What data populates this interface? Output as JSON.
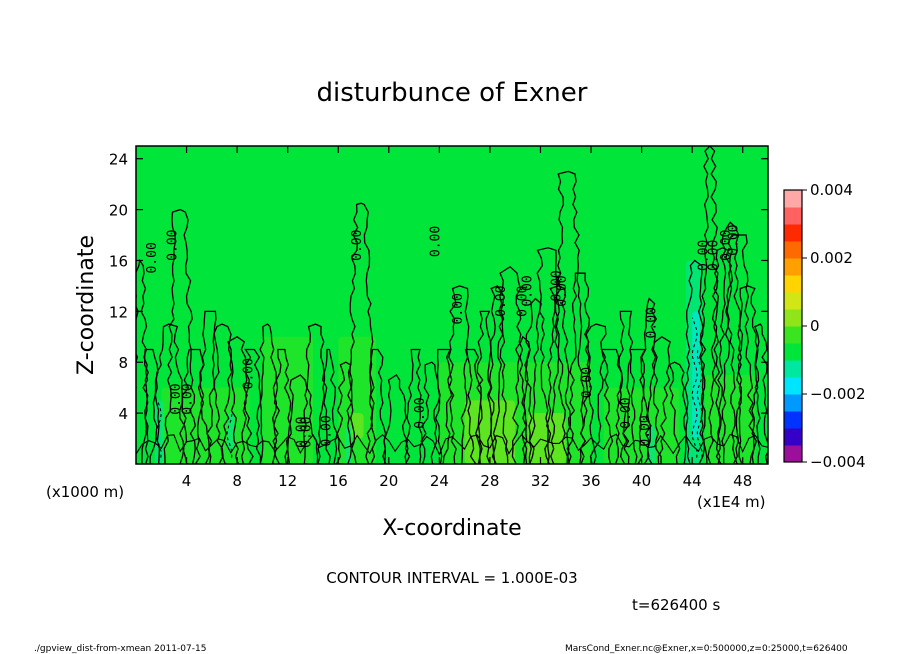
{
  "chart_data": {
    "type": "heatmap",
    "title": "disturbunce of Exner",
    "xlabel": "X-coordinate",
    "ylabel": "Z-coordinate",
    "x_unit_note": "(x1000 m)",
    "x_scale_note": "(x1E4 m)",
    "xlim": [
      0,
      50
    ],
    "ylim": [
      0,
      25
    ],
    "x_ticks": [
      4,
      8,
      12,
      16,
      20,
      24,
      28,
      32,
      36,
      40,
      44,
      48
    ],
    "y_ticks": [
      4,
      8,
      12,
      16,
      20,
      24
    ],
    "x_tick_labels": [
      "4",
      "8",
      "12",
      "16",
      "20",
      "24",
      "28",
      "32",
      "36",
      "40",
      "44",
      "48"
    ],
    "y_tick_labels": [
      "4",
      "8",
      "12",
      "16",
      "20",
      "24"
    ],
    "colorbar": {
      "range": [
        -0.004,
        0.004
      ],
      "tick_labels": [
        "0.004",
        "0.002",
        "0",
        "−0.002",
        "−0.004"
      ],
      "colors": [
        "#9b0f9b",
        "#3500c8",
        "#0033ff",
        "#0099ff",
        "#00e5ff",
        "#00e8a0",
        "#00e53a",
        "#38e51e",
        "#8fe51a",
        "#d2e515",
        "#ffd400",
        "#ffa000",
        "#ff6a00",
        "#ff2a00",
        "#ff6060",
        "#ffa8a8"
      ]
    },
    "contour_interval_label": "CONTOUR INTERVAL = 1.000E-03",
    "contour_labels": [
      "0.00",
      "0.00",
      "0.00",
      "0.00",
      "0.00",
      "0.00",
      "0.00",
      "0.00",
      "0.00",
      "0.00",
      "0.00",
      "0.00",
      "0.00",
      "0.00",
      "0.00",
      "0.00",
      "0.00",
      "0.00",
      "0.00",
      "0.00",
      "0.00",
      "0.00",
      "0.00",
      "0.00",
      "0.00"
    ],
    "time_label": "t=626400 s",
    "grid": false,
    "legend": "colorbar-right"
  },
  "footer": {
    "left": "./gpview_dist-from-xmean  2011-07-15",
    "right": "MarsCond_Exner.nc@Exner,x=0:500000,z=0:25000,t=626400"
  }
}
